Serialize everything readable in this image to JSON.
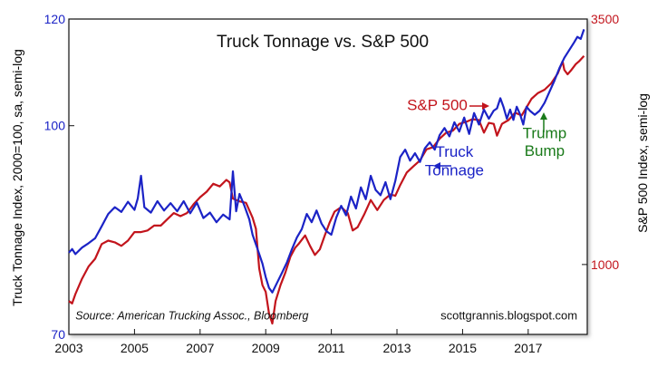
{
  "chart_data": {
    "type": "line",
    "title": "Truck Tonnage vs. S&P 500",
    "x_range": [
      2003,
      2018.8
    ],
    "x_ticks": [
      "2003",
      "2005",
      "2007",
      "2009",
      "2011",
      "2013",
      "2015",
      "2017"
    ],
    "y_left": {
      "label": "Truck Tonnage Index, 2000=100, sa, semi-log",
      "range": [
        70,
        120
      ],
      "scale": "log",
      "ticks": [
        "70",
        "100",
        "120"
      ],
      "color": "#1b23c6"
    },
    "y_right": {
      "label": "S&P 500 Index, semi-log",
      "range": [
        700,
        3500
      ],
      "scale": "log",
      "ticks": [
        "1000",
        "3500"
      ],
      "color": "#c2141c"
    },
    "grid": false,
    "series": [
      {
        "name": "Truck Tonnage",
        "axis": "left",
        "color": "#1b23c6",
        "points": [
          [
            2003.0,
            80.5
          ],
          [
            2003.1,
            81.0
          ],
          [
            2003.2,
            80.3
          ],
          [
            2003.4,
            81.2
          ],
          [
            2003.6,
            81.8
          ],
          [
            2003.8,
            82.5
          ],
          [
            2004.0,
            84.2
          ],
          [
            2004.2,
            86.0
          ],
          [
            2004.4,
            87.0
          ],
          [
            2004.6,
            86.3
          ],
          [
            2004.8,
            87.8
          ],
          [
            2005.0,
            86.6
          ],
          [
            2005.1,
            88.3
          ],
          [
            2005.2,
            91.8
          ],
          [
            2005.3,
            87.0
          ],
          [
            2005.5,
            86.2
          ],
          [
            2005.7,
            87.9
          ],
          [
            2005.9,
            86.5
          ],
          [
            2006.1,
            87.6
          ],
          [
            2006.3,
            86.4
          ],
          [
            2006.5,
            87.9
          ],
          [
            2006.7,
            86.1
          ],
          [
            2006.9,
            87.7
          ],
          [
            2007.1,
            85.4
          ],
          [
            2007.3,
            86.2
          ],
          [
            2007.5,
            84.8
          ],
          [
            2007.7,
            85.9
          ],
          [
            2007.9,
            85.2
          ],
          [
            2008.0,
            92.5
          ],
          [
            2008.1,
            86.4
          ],
          [
            2008.2,
            89.0
          ],
          [
            2008.35,
            87.2
          ],
          [
            2008.5,
            85.2
          ],
          [
            2008.6,
            83.0
          ],
          [
            2008.75,
            81.0
          ],
          [
            2008.9,
            79.0
          ],
          [
            2009.0,
            77.2
          ],
          [
            2009.1,
            75.8
          ],
          [
            2009.2,
            75.2
          ],
          [
            2009.35,
            76.5
          ],
          [
            2009.5,
            77.8
          ],
          [
            2009.65,
            79.2
          ],
          [
            2009.8,
            81.0
          ],
          [
            2009.95,
            82.6
          ],
          [
            2010.1,
            83.8
          ],
          [
            2010.25,
            86.0
          ],
          [
            2010.4,
            84.8
          ],
          [
            2010.55,
            86.5
          ],
          [
            2010.7,
            84.6
          ],
          [
            2010.85,
            83.5
          ],
          [
            2011.0,
            83.0
          ],
          [
            2011.15,
            85.5
          ],
          [
            2011.3,
            87.2
          ],
          [
            2011.45,
            85.8
          ],
          [
            2011.6,
            88.6
          ],
          [
            2011.75,
            86.8
          ],
          [
            2011.9,
            90.0
          ],
          [
            2012.05,
            88.2
          ],
          [
            2012.2,
            91.8
          ],
          [
            2012.35,
            89.6
          ],
          [
            2012.5,
            88.8
          ],
          [
            2012.65,
            90.8
          ],
          [
            2012.8,
            88.2
          ],
          [
            2012.95,
            91.0
          ],
          [
            2013.1,
            94.8
          ],
          [
            2013.25,
            96.0
          ],
          [
            2013.4,
            94.2
          ],
          [
            2013.55,
            95.4
          ],
          [
            2013.7,
            94.0
          ],
          [
            2013.85,
            96.2
          ],
          [
            2014.0,
            97.2
          ],
          [
            2014.15,
            96.0
          ],
          [
            2014.3,
            98.4
          ],
          [
            2014.45,
            99.6
          ],
          [
            2014.6,
            98.2
          ],
          [
            2014.75,
            100.6
          ],
          [
            2014.9,
            99.0
          ],
          [
            2015.05,
            101.4
          ],
          [
            2015.2,
            98.6
          ],
          [
            2015.35,
            102.2
          ],
          [
            2015.5,
            100.2
          ],
          [
            2015.65,
            102.8
          ],
          [
            2015.8,
            101.2
          ],
          [
            2015.95,
            102.6
          ],
          [
            2016.05,
            103.0
          ],
          [
            2016.15,
            104.8
          ],
          [
            2016.25,
            103.2
          ],
          [
            2016.35,
            101.2
          ],
          [
            2016.45,
            102.8
          ],
          [
            2016.55,
            101.0
          ],
          [
            2016.65,
            103.3
          ],
          [
            2016.75,
            102.0
          ],
          [
            2016.85,
            100.2
          ],
          [
            2016.95,
            103.3
          ],
          [
            2017.05,
            102.6
          ],
          [
            2017.2,
            101.9
          ],
          [
            2017.35,
            102.6
          ],
          [
            2017.5,
            104.0
          ],
          [
            2017.65,
            106.0
          ],
          [
            2017.8,
            108.0
          ],
          [
            2017.95,
            110.3
          ],
          [
            2018.1,
            112.3
          ],
          [
            2018.25,
            113.8
          ],
          [
            2018.4,
            115.3
          ],
          [
            2018.5,
            116.4
          ],
          [
            2018.6,
            116.0
          ],
          [
            2018.7,
            117.9
          ]
        ]
      },
      {
        "name": "S&P 500",
        "axis": "right",
        "color": "#c2141c",
        "points": [
          [
            2003.0,
            830
          ],
          [
            2003.1,
            820
          ],
          [
            2003.2,
            860
          ],
          [
            2003.4,
            930
          ],
          [
            2003.6,
            990
          ],
          [
            2003.8,
            1030
          ],
          [
            2004.0,
            1110
          ],
          [
            2004.2,
            1130
          ],
          [
            2004.4,
            1120
          ],
          [
            2004.6,
            1100
          ],
          [
            2004.8,
            1130
          ],
          [
            2005.0,
            1180
          ],
          [
            2005.2,
            1180
          ],
          [
            2005.4,
            1190
          ],
          [
            2005.6,
            1220
          ],
          [
            2005.8,
            1220
          ],
          [
            2006.0,
            1260
          ],
          [
            2006.2,
            1300
          ],
          [
            2006.4,
            1280
          ],
          [
            2006.6,
            1300
          ],
          [
            2006.8,
            1360
          ],
          [
            2007.0,
            1410
          ],
          [
            2007.2,
            1450
          ],
          [
            2007.4,
            1510
          ],
          [
            2007.6,
            1490
          ],
          [
            2007.8,
            1540
          ],
          [
            2007.9,
            1520
          ],
          [
            2008.0,
            1400
          ],
          [
            2008.2,
            1380
          ],
          [
            2008.4,
            1370
          ],
          [
            2008.6,
            1270
          ],
          [
            2008.7,
            1200
          ],
          [
            2008.8,
            980
          ],
          [
            2008.9,
            900
          ],
          [
            2009.0,
            870
          ],
          [
            2009.1,
            780
          ],
          [
            2009.2,
            740
          ],
          [
            2009.3,
            830
          ],
          [
            2009.45,
            900
          ],
          [
            2009.6,
            960
          ],
          [
            2009.75,
            1040
          ],
          [
            2009.9,
            1090
          ],
          [
            2010.0,
            1110
          ],
          [
            2010.2,
            1160
          ],
          [
            2010.35,
            1100
          ],
          [
            2010.5,
            1050
          ],
          [
            2010.65,
            1080
          ],
          [
            2010.8,
            1160
          ],
          [
            2010.95,
            1240
          ],
          [
            2011.1,
            1310
          ],
          [
            2011.3,
            1340
          ],
          [
            2011.5,
            1300
          ],
          [
            2011.65,
            1190
          ],
          [
            2011.8,
            1210
          ],
          [
            2012.0,
            1290
          ],
          [
            2012.2,
            1390
          ],
          [
            2012.4,
            1320
          ],
          [
            2012.6,
            1390
          ],
          [
            2012.8,
            1430
          ],
          [
            2012.95,
            1420
          ],
          [
            2013.1,
            1500
          ],
          [
            2013.3,
            1600
          ],
          [
            2013.5,
            1650
          ],
          [
            2013.7,
            1700
          ],
          [
            2013.9,
            1800
          ],
          [
            2014.1,
            1820
          ],
          [
            2014.3,
            1900
          ],
          [
            2014.5,
            1960
          ],
          [
            2014.7,
            1980
          ],
          [
            2014.9,
            2050
          ],
          [
            2015.1,
            2070
          ],
          [
            2015.3,
            2100
          ],
          [
            2015.5,
            2090
          ],
          [
            2015.65,
            1960
          ],
          [
            2015.8,
            2060
          ],
          [
            2015.95,
            2050
          ],
          [
            2016.05,
            1930
          ],
          [
            2016.2,
            2050
          ],
          [
            2016.4,
            2090
          ],
          [
            2016.6,
            2170
          ],
          [
            2016.8,
            2140
          ],
          [
            2016.95,
            2230
          ],
          [
            2017.1,
            2330
          ],
          [
            2017.3,
            2400
          ],
          [
            2017.5,
            2440
          ],
          [
            2017.7,
            2520
          ],
          [
            2017.9,
            2650
          ],
          [
            2018.05,
            2820
          ],
          [
            2018.1,
            2700
          ],
          [
            2018.2,
            2640
          ],
          [
            2018.3,
            2690
          ],
          [
            2018.45,
            2780
          ],
          [
            2018.55,
            2820
          ],
          [
            2018.7,
            2900
          ]
        ]
      }
    ],
    "annotations": [
      {
        "text": "S&P 500",
        "color": "#c2141c",
        "at": [
          2015.15,
          2200
        ],
        "arrow_to": [
          2015.75,
          2200
        ]
      },
      {
        "text": "Truck",
        "color": "#1b23c6",
        "at": [
          2014.75,
          94.8
        ]
      },
      {
        "text": "Tonnage",
        "color": "#1b23c6",
        "at": [
          2014.75,
          91.9
        ]
      },
      {
        "text": "Trump",
        "color": "#1a7a1a",
        "at": [
          2017.5,
          97.9
        ]
      },
      {
        "text": "Bump",
        "color": "#1a7a1a",
        "at": [
          2017.5,
          95.0
        ]
      },
      {
        "text": "Source: American Trucking Assoc., Bloomberg",
        "color": "#111111",
        "at": [
          2003.2,
          71.8
        ]
      },
      {
        "text": "scottgrannis.blogspot.com",
        "color": "#111111",
        "at": [
          2018.5,
          71.8
        ]
      }
    ]
  }
}
